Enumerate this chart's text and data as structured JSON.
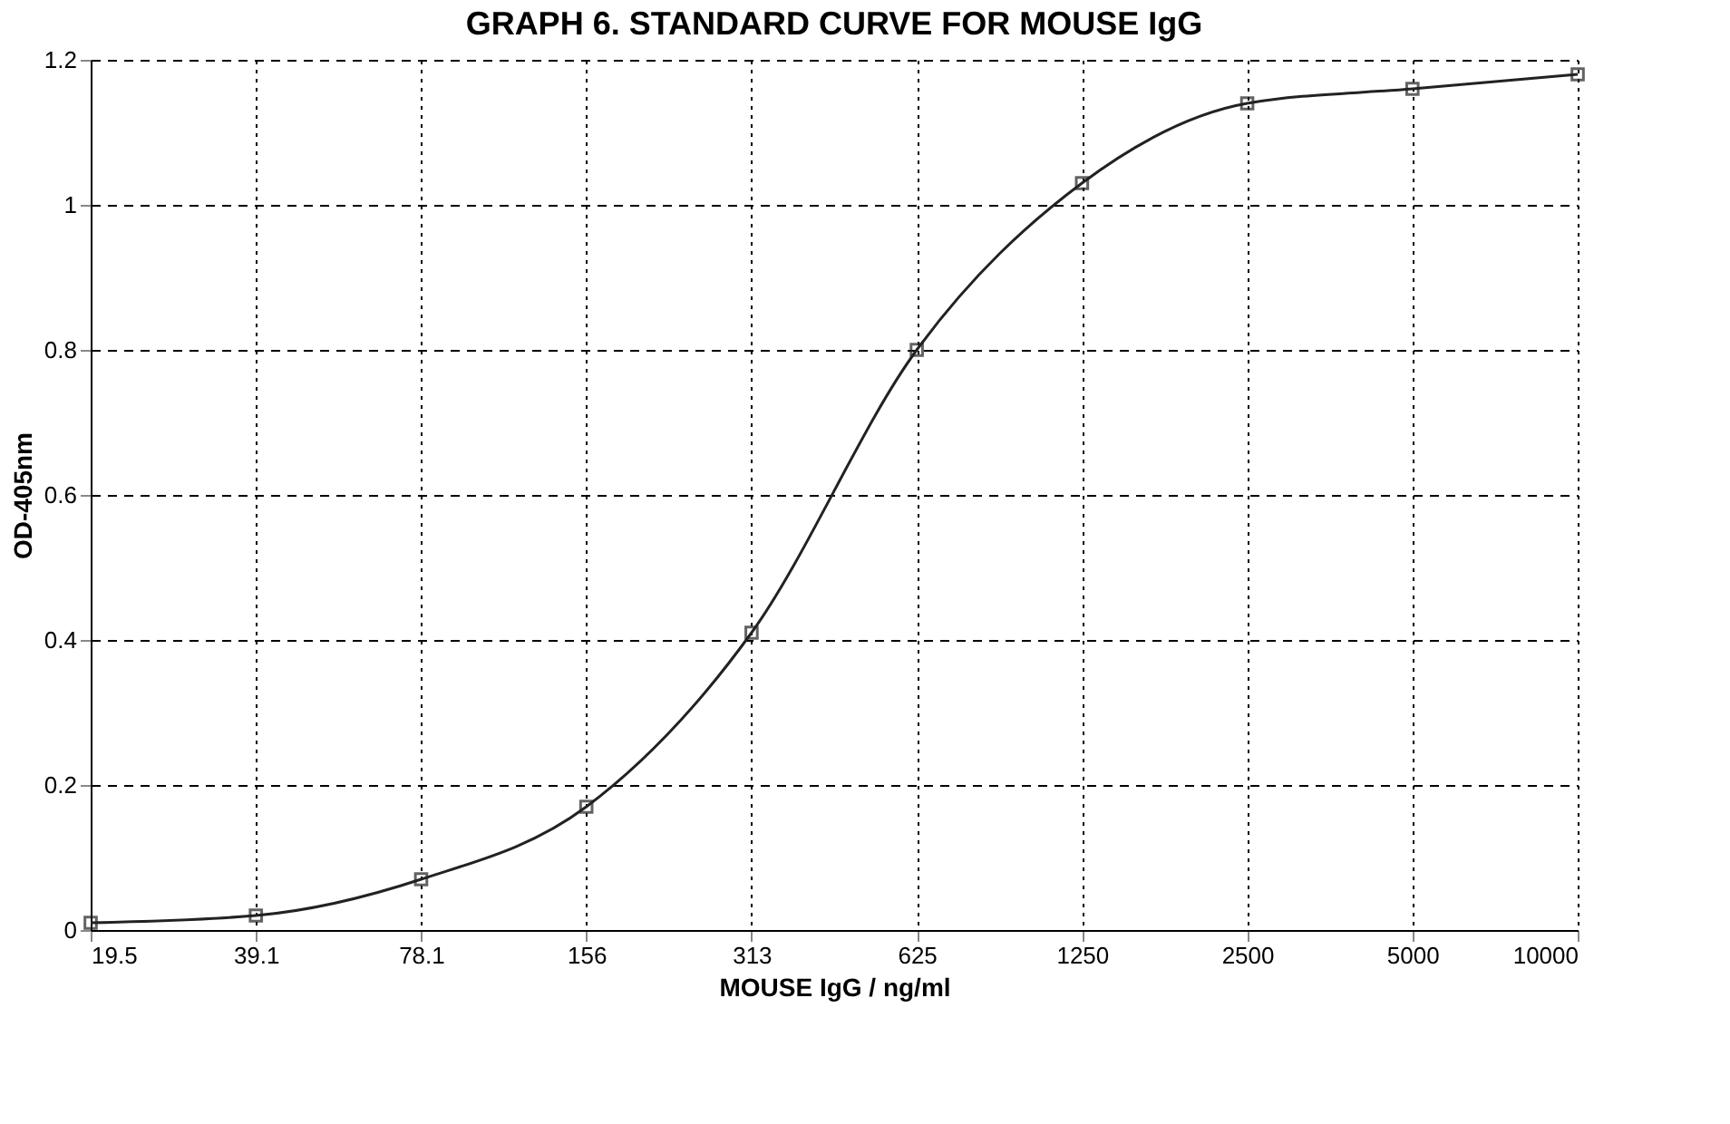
{
  "chart_data": {
    "type": "line",
    "title": "GRAPH 6. STANDARD CURVE FOR MOUSE IgG",
    "xlabel": "MOUSE IgG / ng/ml",
    "ylabel": "OD-405nm",
    "categories": [
      "19.5",
      "39.1",
      "78.1",
      "156",
      "313",
      "625",
      "1250",
      "2500",
      "5000",
      "10000"
    ],
    "series": [
      {
        "color": "#222222",
        "values": [
          0.01,
          0.02,
          0.07,
          0.17,
          0.41,
          0.8,
          1.03,
          1.14,
          1.16,
          1.18
        ]
      }
    ],
    "ylim": [
      0,
      1.2
    ],
    "yticks": [
      0,
      0.2,
      0.4,
      0.6,
      0.8,
      1,
      1.2
    ],
    "grid": true,
    "marker": "square",
    "line_style": "solid",
    "legend": false
  }
}
